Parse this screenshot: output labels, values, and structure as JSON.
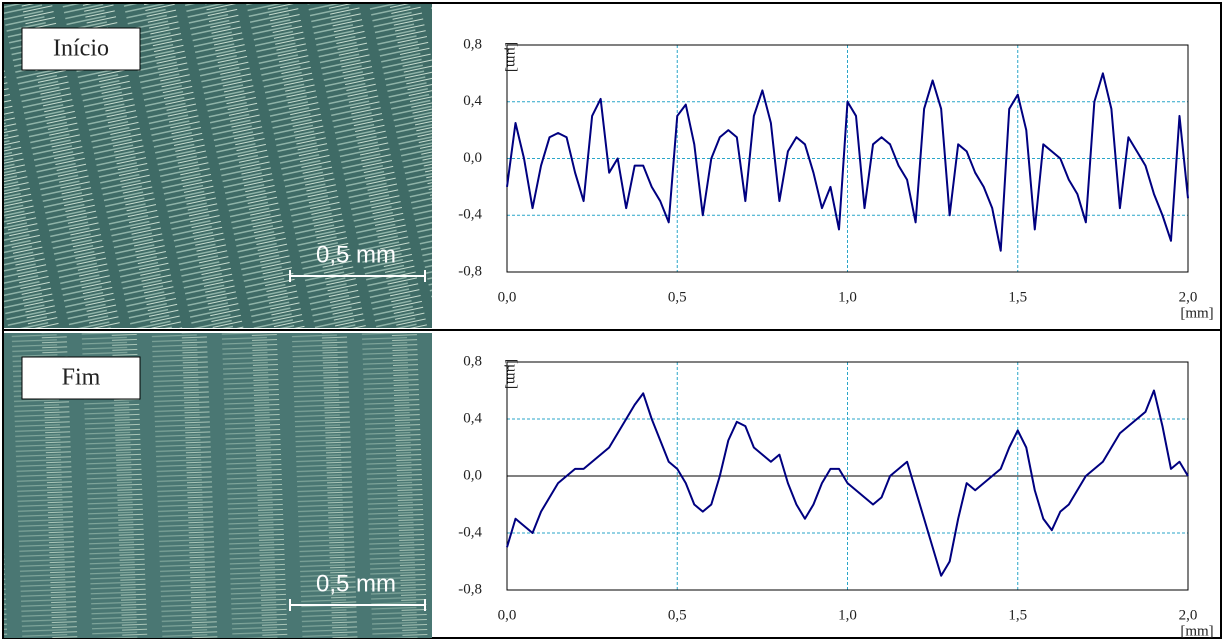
{
  "chart_data": [
    {
      "type": "line",
      "label": "Início",
      "scale_bar": "0,5 mm",
      "x_label": "[mm]",
      "y_label": "[µm]",
      "xlim": [
        0,
        2
      ],
      "ylim": [
        -0.8,
        0.8
      ],
      "grid": true,
      "zero_line": false,
      "xticks": [
        {
          "value": 0,
          "label": "0,0"
        },
        {
          "value": 0.5,
          "label": "0,5"
        },
        {
          "value": 1,
          "label": "1,0"
        },
        {
          "value": 1.5,
          "label": "1,5"
        },
        {
          "value": 2,
          "label": "2,0"
        }
      ],
      "yticks": [
        {
          "value": -0.8,
          "label": "-0,8"
        },
        {
          "value": -0.4,
          "label": "-0,4"
        },
        {
          "value": 0,
          "label": "0,0"
        },
        {
          "value": 0.4,
          "label": "0,4"
        },
        {
          "value": 0.8,
          "label": "0,8"
        }
      ],
      "x": [
        0,
        0.025,
        0.05,
        0.075,
        0.1,
        0.125,
        0.15,
        0.175,
        0.2,
        0.225,
        0.25,
        0.275,
        0.3,
        0.325,
        0.35,
        0.375,
        0.4,
        0.425,
        0.45,
        0.475,
        0.5,
        0.525,
        0.55,
        0.575,
        0.6,
        0.625,
        0.65,
        0.675,
        0.7,
        0.725,
        0.75,
        0.775,
        0.8,
        0.825,
        0.85,
        0.875,
        0.9,
        0.925,
        0.95,
        0.975,
        1,
        1.025,
        1.05,
        1.075,
        1.1,
        1.125,
        1.15,
        1.175,
        1.2,
        1.225,
        1.25,
        1.275,
        1.3,
        1.325,
        1.35,
        1.375,
        1.4,
        1.425,
        1.45,
        1.475,
        1.5,
        1.525,
        1.55,
        1.575,
        1.6,
        1.625,
        1.65,
        1.675,
        1.7,
        1.725,
        1.75,
        1.775,
        1.8,
        1.825,
        1.85,
        1.875,
        1.9,
        1.925,
        1.95,
        1.975,
        2
      ],
      "series": [
        {
          "color": "#000080",
          "values": [
            -0.2,
            0.25,
            0,
            -0.35,
            -0.05,
            0.15,
            0.18,
            0.15,
            -0.1,
            -0.3,
            0.3,
            0.42,
            -0.1,
            0,
            -0.35,
            -0.05,
            -0.05,
            -0.2,
            -0.3,
            -0.45,
            0.3,
            0.38,
            0.1,
            -0.4,
            0,
            0.15,
            0.2,
            0.15,
            -0.3,
            0.3,
            0.48,
            0.25,
            -0.3,
            0.05,
            0.15,
            0.1,
            -0.1,
            -0.35,
            -0.2,
            -0.5,
            0.4,
            0.3,
            -0.35,
            0.1,
            0.15,
            0.1,
            -0.05,
            -0.15,
            -0.45,
            0.35,
            0.55,
            0.35,
            -0.4,
            0.1,
            0.05,
            -0.1,
            -0.2,
            -0.35,
            -0.65,
            0.35,
            0.45,
            0.2,
            -0.5,
            0.1,
            0.05,
            0,
            -0.15,
            -0.25,
            -0.45,
            0.4,
            0.6,
            0.35,
            -0.35,
            0.15,
            0.05,
            -0.05,
            -0.25,
            -0.4,
            -0.58,
            0.3,
            -0.28
          ]
        }
      ]
    },
    {
      "type": "line",
      "label": "Fim",
      "scale_bar": "0,5 mm",
      "x_label": "[mm]",
      "y_label": "[µm]",
      "xlim": [
        0,
        2
      ],
      "ylim": [
        -0.8,
        0.8
      ],
      "grid": true,
      "zero_line": true,
      "xticks": [
        {
          "value": 0,
          "label": "0,0"
        },
        {
          "value": 0.5,
          "label": "0,5"
        },
        {
          "value": 1,
          "label": "1,0"
        },
        {
          "value": 1.5,
          "label": "1,5"
        },
        {
          "value": 2,
          "label": "2,0"
        }
      ],
      "yticks": [
        {
          "value": -0.8,
          "label": "-0,8"
        },
        {
          "value": -0.4,
          "label": "-0,4"
        },
        {
          "value": 0,
          "label": "0,0"
        },
        {
          "value": 0.4,
          "label": "0,4"
        },
        {
          "value": 0.8,
          "label": "0,8"
        }
      ],
      "x": [
        0,
        0.025,
        0.05,
        0.075,
        0.1,
        0.125,
        0.15,
        0.175,
        0.2,
        0.225,
        0.25,
        0.275,
        0.3,
        0.325,
        0.35,
        0.375,
        0.4,
        0.425,
        0.45,
        0.475,
        0.5,
        0.525,
        0.55,
        0.575,
        0.6,
        0.625,
        0.65,
        0.675,
        0.7,
        0.725,
        0.75,
        0.775,
        0.8,
        0.825,
        0.85,
        0.875,
        0.9,
        0.925,
        0.95,
        0.975,
        1,
        1.025,
        1.05,
        1.075,
        1.1,
        1.125,
        1.15,
        1.175,
        1.2,
        1.225,
        1.25,
        1.275,
        1.3,
        1.325,
        1.35,
        1.375,
        1.4,
        1.425,
        1.45,
        1.475,
        1.5,
        1.525,
        1.55,
        1.575,
        1.6,
        1.625,
        1.65,
        1.675,
        1.7,
        1.725,
        1.75,
        1.775,
        1.8,
        1.825,
        1.85,
        1.875,
        1.9,
        1.925,
        1.95,
        1.975,
        2
      ],
      "series": [
        {
          "color": "#000080",
          "values": [
            -0.5,
            -0.3,
            -0.35,
            -0.4,
            -0.25,
            -0.15,
            -0.05,
            0,
            0.05,
            0.05,
            0.1,
            0.15,
            0.2,
            0.3,
            0.4,
            0.5,
            0.58,
            0.4,
            0.25,
            0.1,
            0.05,
            -0.05,
            -0.2,
            -0.25,
            -0.2,
            0,
            0.25,
            0.38,
            0.35,
            0.2,
            0.15,
            0.1,
            0.15,
            -0.05,
            -0.2,
            -0.3,
            -0.2,
            -0.05,
            0.05,
            0.05,
            -0.05,
            -0.1,
            -0.15,
            -0.2,
            -0.15,
            0,
            0.05,
            0.1,
            -0.1,
            -0.3,
            -0.5,
            -0.7,
            -0.6,
            -0.3,
            -0.05,
            -0.1,
            -0.05,
            0,
            0.05,
            0.2,
            0.32,
            0.2,
            -0.1,
            -0.3,
            -0.38,
            -0.25,
            -0.2,
            -0.1,
            0,
            0.05,
            0.1,
            0.2,
            0.3,
            0.35,
            0.4,
            0.45,
            0.6,
            0.35,
            0.05,
            0.1,
            0
          ]
        }
      ]
    }
  ]
}
